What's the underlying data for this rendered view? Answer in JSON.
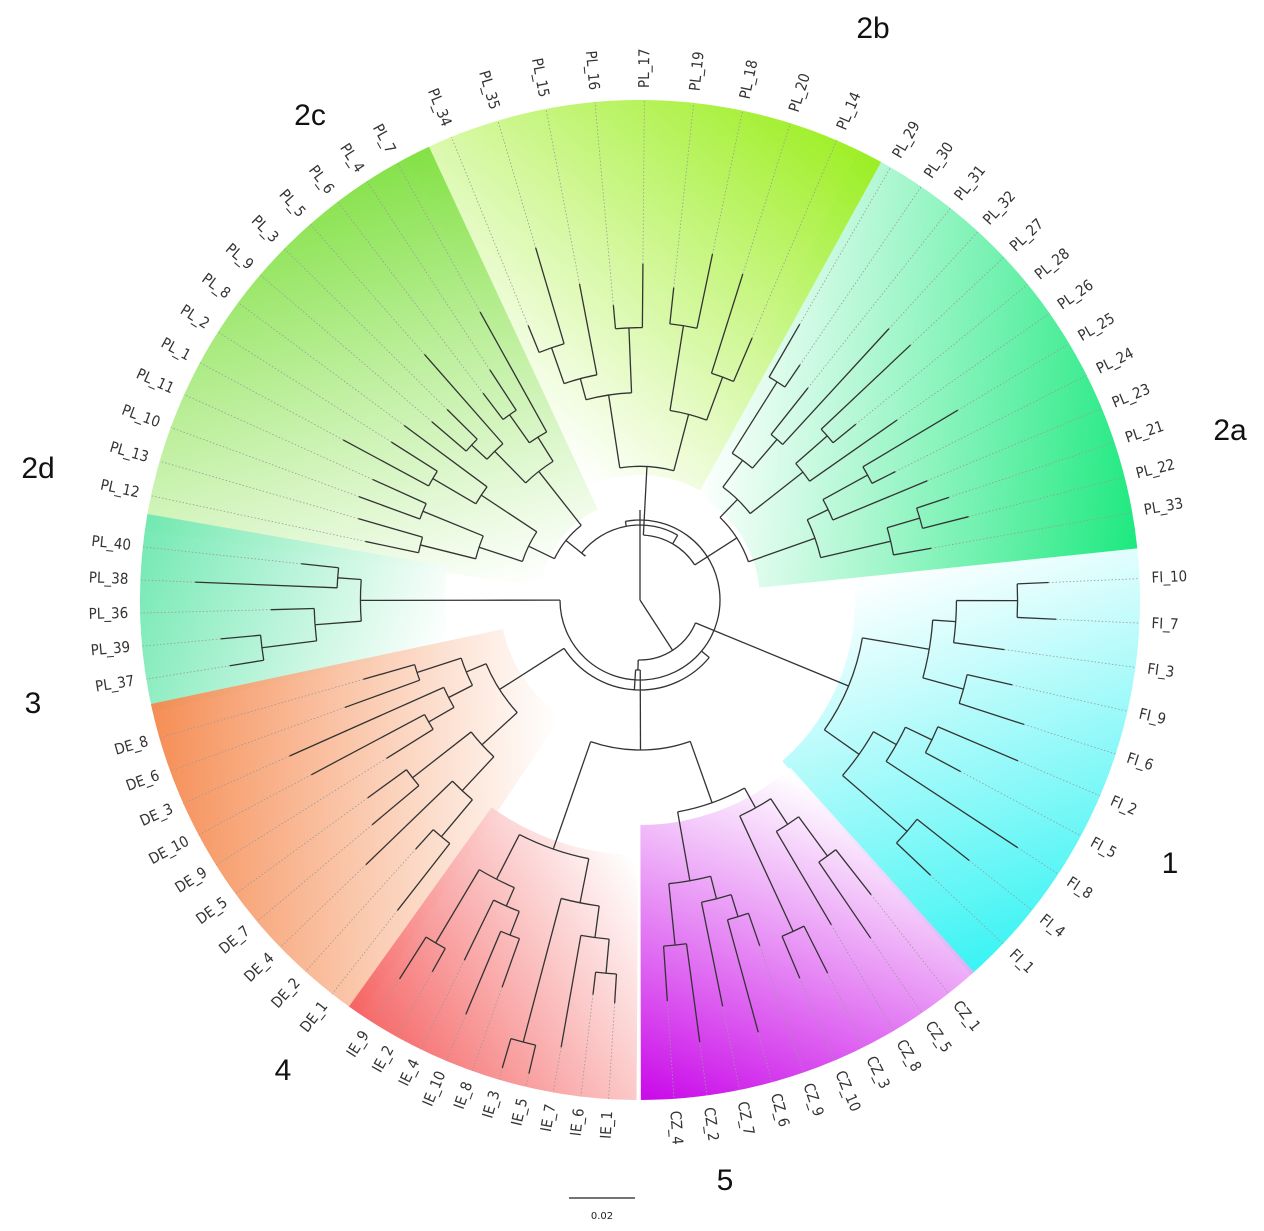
{
  "clades": [
    {
      "id": "1",
      "label": "1",
      "color": "#33f3f3",
      "leaves": [
        "FI_10",
        "FI_7",
        "FI_3",
        "FI_9",
        "FI_6",
        "FI_2",
        "FI_5",
        "FI_8",
        "FI_4",
        "FI_1"
      ]
    },
    {
      "id": "2a",
      "label": "2a",
      "color": "#14e87a",
      "leaves": [
        "PL_29",
        "PL_30",
        "PL_31",
        "PL_32",
        "PL_27",
        "PL_28",
        "PL_26",
        "PL_25",
        "PL_24",
        "PL_23",
        "PL_21",
        "PL_22",
        "PL_33"
      ]
    },
    {
      "id": "2b",
      "label": "2b",
      "color": "#9aee1c",
      "leaves": [
        "PL_34",
        "PL_35",
        "PL_15",
        "PL_16",
        "PL_17",
        "PL_19",
        "PL_18",
        "PL_20",
        "PL_14"
      ]
    },
    {
      "id": "2c",
      "label": "2c",
      "color": "#7fe040",
      "leaves": [
        "PL_12",
        "PL_13",
        "PL_10",
        "PL_11",
        "PL_1",
        "PL_2",
        "PL_8",
        "PL_9",
        "PL_3",
        "PL_5",
        "PL_6",
        "PL_4",
        "PL_7"
      ]
    },
    {
      "id": "2d",
      "label": "2d",
      "color": "#6ee8b0",
      "leaves": [
        "PL_37",
        "PL_39",
        "PL_36",
        "PL_38",
        "PL_40"
      ]
    },
    {
      "id": "3",
      "label": "3",
      "color": "#f5894e",
      "leaves": [
        "DE_1",
        "DE_2",
        "DE_4",
        "DE_7",
        "DE_5",
        "DE_9",
        "DE_10",
        "DE_3",
        "DE_6",
        "DE_8"
      ]
    },
    {
      "id": "4",
      "label": "4",
      "color": "#f56262",
      "leaves": [
        "IE_1",
        "IE_6",
        "IE_7",
        "IE_5",
        "IE_3",
        "IE_8",
        "IE_10",
        "IE_4",
        "IE_2",
        "IE_9"
      ]
    },
    {
      "id": "5",
      "label": "5",
      "color": "#c800e8",
      "leaves": [
        "CZ_1",
        "CZ_5",
        "CZ_8",
        "CZ_3",
        "CZ_10",
        "CZ_9",
        "CZ_6",
        "CZ_7",
        "CZ_2",
        "CZ_4"
      ]
    }
  ],
  "scale_bar": {
    "label": "0.02"
  }
}
